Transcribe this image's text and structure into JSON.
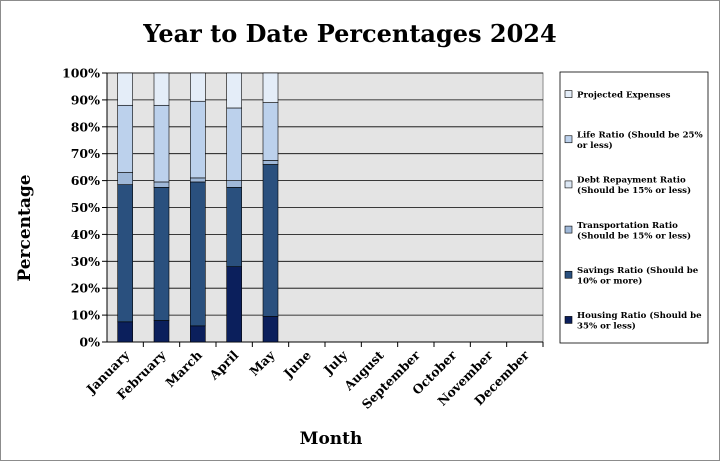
{
  "chart_data": {
    "type": "bar",
    "stacked": true,
    "title": "Year to Date Percentages 2024",
    "xlabel": "Month",
    "ylabel": "Percentage",
    "ylim": [
      0,
      100
    ],
    "yticks": [
      "0%",
      "10%",
      "20%",
      "30%",
      "40%",
      "50%",
      "60%",
      "70%",
      "80%",
      "90%",
      "100%"
    ],
    "categories": [
      "January",
      "February",
      "March",
      "April",
      "May",
      "June",
      "July",
      "August",
      "September",
      "October",
      "November",
      "December"
    ],
    "series": [
      {
        "name": "Housing Ratio (Should be 35% or less)",
        "color": "#0b1f5c",
        "values": [
          7.5,
          8,
          6,
          28,
          9.5,
          null,
          null,
          null,
          null,
          null,
          null,
          null
        ]
      },
      {
        "name": "Savings Ratio (Should be 10% or more)",
        "color": "#2a507e",
        "values": [
          51,
          49.5,
          53.5,
          29.5,
          56.5,
          null,
          null,
          null,
          null,
          null,
          null,
          null
        ]
      },
      {
        "name": "Transportation Ratio (Should be 15% or less)",
        "color": "#9fb8d8",
        "values": [
          4.5,
          2,
          1.5,
          2.5,
          1.5,
          null,
          null,
          null,
          null,
          null,
          null,
          null
        ]
      },
      {
        "name": "Debt Repayment Ratio (Should be 15% or less)",
        "color": "#dce7f4",
        "values": [
          0,
          0,
          0,
          0,
          0,
          null,
          null,
          null,
          null,
          null,
          null,
          null
        ]
      },
      {
        "name": "Life Ratio (Should be 25% or less)",
        "color": "#bcd1ec",
        "values": [
          25,
          28.5,
          28.5,
          27,
          21.5,
          null,
          null,
          null,
          null,
          null,
          null,
          null
        ]
      },
      {
        "name": "Projected Expenses",
        "color": "#e4edf8",
        "values": [
          12,
          12,
          10.5,
          13,
          11,
          null,
          null,
          null,
          null,
          null,
          null,
          null
        ]
      }
    ],
    "legend": {
      "position": "right",
      "order": [
        "Projected Expenses",
        "Life Ratio (Should be 25% or less)",
        "Debt Repayment Ratio (Should be 15% or less)",
        "Transportation Ratio (Should be 15% or less)",
        "Savings Ratio (Should be 10% or more)",
        "Housing Ratio (Should be 35% or less)"
      ]
    },
    "grid": true,
    "plot_background": "#e4e4e4"
  }
}
